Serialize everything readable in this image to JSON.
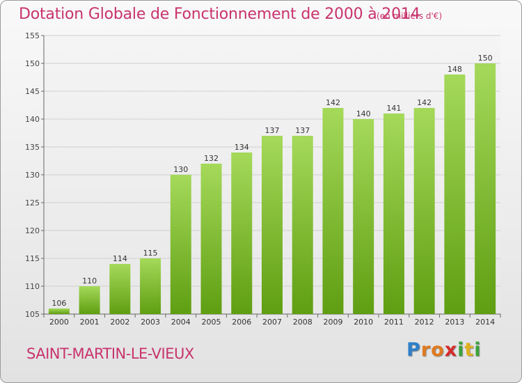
{
  "title": "Dotation Globale de Fonctionnement de 2000 à 2014",
  "subtitle": "(en milliers d'€)",
  "commune": "SAINT-MARTIN-LE-VIEUX",
  "logo": {
    "text": "Proxiti",
    "letters": [
      "P",
      "r",
      "o",
      "x",
      "i",
      "t",
      "i"
    ]
  },
  "colors": {
    "title": "#c8336d",
    "bar_light": "#a5d95a",
    "bar_dark": "#5f9e12",
    "grid": "#cfcfcf"
  },
  "chart_data": {
    "type": "bar",
    "categories": [
      "2000",
      "2001",
      "2002",
      "2003",
      "2004",
      "2005",
      "2006",
      "2007",
      "2008",
      "2009",
      "2010",
      "2011",
      "2012",
      "2013",
      "2014"
    ],
    "values": [
      106,
      110,
      114,
      115,
      130,
      132,
      134,
      137,
      137,
      142,
      140,
      141,
      142,
      148,
      150
    ],
    "ylim": [
      105,
      155
    ],
    "yticks": [
      105,
      110,
      115,
      120,
      125,
      130,
      135,
      140,
      145,
      150,
      155
    ],
    "grid": true
  }
}
